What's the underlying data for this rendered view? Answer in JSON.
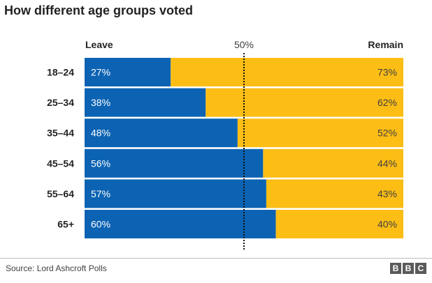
{
  "chart_data": {
    "type": "bar",
    "orientation": "horizontal",
    "stacked": true,
    "title": "How different age groups voted",
    "categories": [
      "18–24",
      "25–34",
      "35–44",
      "45–54",
      "55–64",
      "65+"
    ],
    "series": [
      {
        "name": "Leave",
        "values": [
          27,
          38,
          48,
          56,
          57,
          60
        ],
        "color": "#0c63b3"
      },
      {
        "name": "Remain",
        "values": [
          73,
          62,
          52,
          44,
          43,
          40
        ],
        "color": "#fcbd15"
      }
    ],
    "value_labels": {
      "Leave": [
        "27%",
        "38%",
        "48%",
        "56%",
        "57%",
        "60%"
      ],
      "Remain": [
        "73%",
        "62%",
        "52%",
        "44%",
        "43%",
        "40%"
      ]
    },
    "xlim": [
      0,
      100
    ],
    "reference_line": {
      "value": 50,
      "label": "50%",
      "style": "dotted"
    },
    "legend_placement": "top",
    "grid": false
  },
  "footer": {
    "source": "Source: Lord Ashcroft Polls",
    "brand": [
      "B",
      "B",
      "C"
    ]
  }
}
